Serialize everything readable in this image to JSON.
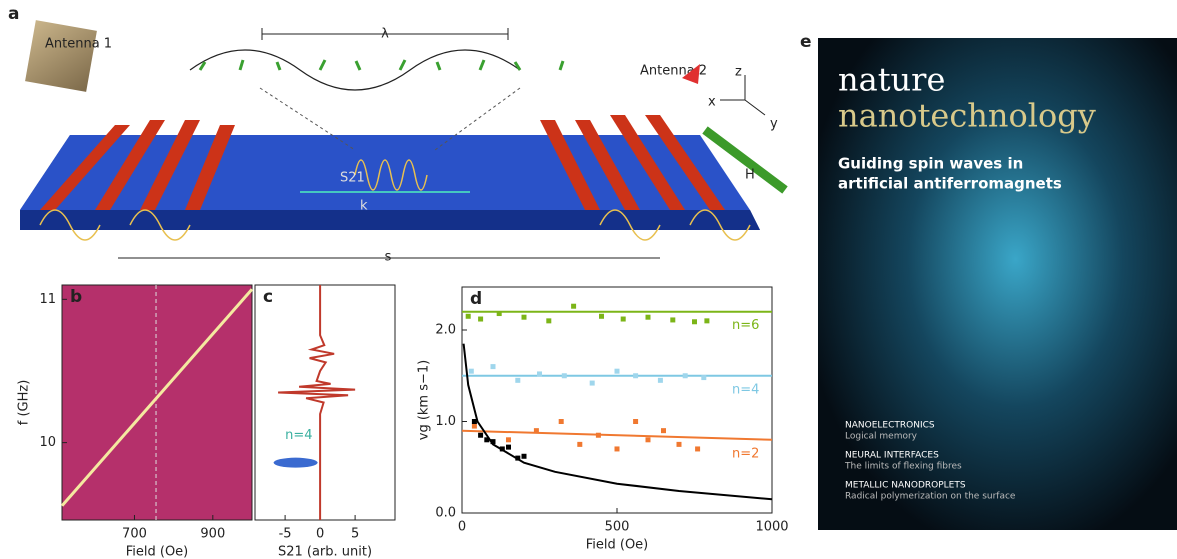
{
  "panel_a": {
    "label": "a",
    "antenna_1": "Antenna 1",
    "antenna_2": "Antenna 2",
    "lambda": "λ",
    "s21": "S21",
    "k": "k",
    "s": "s",
    "h": "H",
    "axis_z": "z",
    "axis_x": "x",
    "axis_y": "y"
  },
  "chart_data": [
    {
      "type": "line",
      "label": "b",
      "xlabel": "Field (Oe)",
      "ylabel": "f (GHz)",
      "background": "#b5306b",
      "xlim": [
        515,
        1000
      ],
      "ylim": [
        9.46,
        11.1
      ],
      "xticks": [
        700,
        900
      ],
      "yticks": [
        10,
        11
      ],
      "vline": 755,
      "series": [
        {
          "color": "#f4e9a0",
          "x": [
            515,
            1000
          ],
          "values": [
            9.56,
            11.07
          ]
        }
      ]
    },
    {
      "type": "line",
      "orientation": "horizontal",
      "label": "c",
      "xlabel": "S21 (arb. unit)",
      "annotation": "n=4",
      "xlim": [
        -9.3,
        10.7
      ],
      "ylim": [
        9.46,
        11.1
      ],
      "xticks": [
        -5,
        0,
        5
      ],
      "series": [
        {
          "color": "#c0392b",
          "y": [
            9.46,
            9.8,
            10.0,
            10.2,
            10.28,
            10.31,
            10.33,
            10.35,
            10.37,
            10.39,
            10.41,
            10.43,
            10.5,
            10.56,
            10.59,
            10.62,
            10.65,
            10.68,
            10.75,
            10.9,
            11.1
          ],
          "values": [
            0,
            0,
            0,
            0,
            0.5,
            -2,
            4,
            -6,
            5,
            -3,
            1.5,
            -0.5,
            0,
            0.8,
            -1.5,
            2,
            -1.2,
            0.6,
            0,
            0,
            0
          ]
        }
      ]
    },
    {
      "type": "line",
      "label": "d",
      "xlabel": "Field (Oe)",
      "ylabel": "vg (km s−1)",
      "xlim": [
        0,
        1000
      ],
      "ylim": [
        0,
        2.47
      ],
      "xticks": [
        0,
        500,
        1000
      ],
      "yticks": [
        {
          "value": 0,
          "label": "0.0"
        },
        {
          "value": 1,
          "label": "1.0"
        },
        {
          "value": 2,
          "label": "2.0"
        }
      ],
      "series": [
        {
          "name": "n=6",
          "color": "#7cb518",
          "x": [
            0,
            1000
          ],
          "values": [
            2.2,
            2.2
          ]
        },
        {
          "name": "n=4",
          "color": "#7ec8e3",
          "x": [
            0,
            1000
          ],
          "values": [
            1.5,
            1.5
          ]
        },
        {
          "name": "n=2",
          "color": "#f07830",
          "x": [
            0,
            1000
          ],
          "values": [
            0.9,
            0.8
          ]
        },
        {
          "color": "#000000",
          "x": [
            5,
            20,
            50,
            100,
            200,
            300,
            500,
            700,
            1000
          ],
          "values": [
            1.85,
            1.4,
            1.0,
            0.75,
            0.55,
            0.45,
            0.32,
            0.24,
            0.15
          ]
        }
      ],
      "points": [
        {
          "color": "#7cb518",
          "x": [
            20,
            60,
            120,
            200,
            280,
            360,
            450,
            520,
            600,
            680,
            750,
            790
          ],
          "values": [
            2.15,
            2.12,
            2.18,
            2.14,
            2.1,
            2.26,
            2.15,
            2.12,
            2.14,
            2.11,
            2.09,
            2.1
          ]
        },
        {
          "color": "#9fd6ec",
          "x": [
            30,
            100,
            180,
            250,
            330,
            420,
            500,
            560,
            640,
            720,
            780
          ],
          "values": [
            1.55,
            1.6,
            1.45,
            1.52,
            1.5,
            1.42,
            1.55,
            1.5,
            1.45,
            1.5,
            1.48
          ]
        },
        {
          "color": "#f07830",
          "x": [
            40,
            150,
            240,
            320,
            380,
            440,
            500,
            560,
            600,
            650,
            700,
            760
          ],
          "values": [
            0.95,
            0.8,
            0.9,
            1.0,
            0.75,
            0.85,
            0.7,
            1.0,
            0.8,
            0.9,
            0.75,
            0.7
          ]
        },
        {
          "color": "#000000",
          "x": [
            40,
            60,
            80,
            100,
            130,
            150,
            180,
            200
          ],
          "values": [
            1.0,
            0.85,
            0.8,
            0.78,
            0.7,
            0.72,
            0.6,
            0.62
          ]
        }
      ]
    }
  ],
  "panel_e": {
    "label": "e",
    "title_1": "nature",
    "title_2": "nanotechnology",
    "headline": [
      "Guiding spin waves in",
      "artificial antiferromagnets"
    ],
    "features": [
      {
        "head": "NANOELECTRONICS",
        "text": "Logical memory"
      },
      {
        "head": "NEURAL INTERFACES",
        "text": "The limits of flexing fibres"
      },
      {
        "head": "METALLIC NANODROPLETS",
        "text": "Radical polymerization on the surface"
      }
    ]
  }
}
